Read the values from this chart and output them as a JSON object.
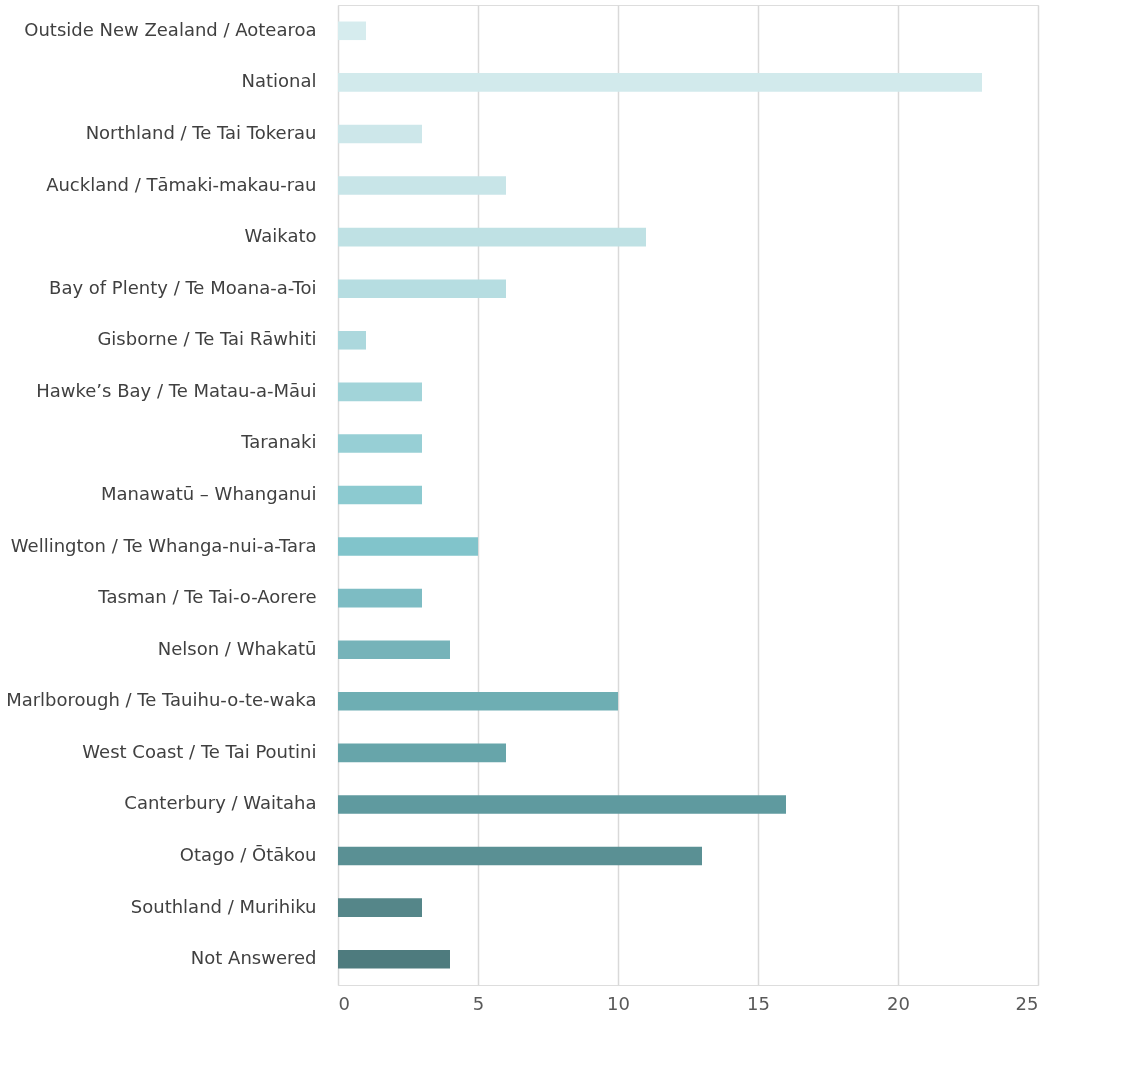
{
  "chart_data": {
    "type": "bar",
    "orientation": "horizontal",
    "categories": [
      "Outside New Zealand / Aotearoa",
      "National",
      "Northland / Te Tai Tokerau",
      "Auckland / Tāmaki-makau-rau",
      "Waikato",
      "Bay of Plenty / Te Moana-a-Toi",
      "Gisborne / Te Tai Rāwhiti",
      "Hawke’s Bay / Te Matau-a-Māui",
      "Taranaki",
      "Manawatū – Whanganui",
      "Wellington / Te Whanga-nui-a-Tara",
      "Tasman / Te Tai-o-Aorere",
      "Nelson / Whakatū",
      "Marlborough / Te Tauihu-o-te-waka",
      "West Coast / Te Tai Poutini",
      "Canterbury / Waitaha",
      "Otago / Ōtākou",
      "Southland / Murihiku",
      "Not Answered"
    ],
    "values": [
      1,
      23,
      3,
      6,
      11,
      6,
      1,
      3,
      3,
      3,
      5,
      3,
      4,
      10,
      6,
      16,
      13,
      3,
      4
    ],
    "colors": [
      "#d6ecee",
      "#d2eaec",
      "#cde7ea",
      "#c8e5e8",
      "#bfe1e4",
      "#b6dde1",
      "#acd8dd",
      "#a2d4d9",
      "#97cfd5",
      "#8ccad0",
      "#81c4cb",
      "#7dbcc3",
      "#76b3b9",
      "#6eaeb3",
      "#67a5aa",
      "#5f9a9f",
      "#5a9094",
      "#558689",
      "#4e7b7e"
    ],
    "xlim": [
      0,
      25
    ],
    "xticks": [
      0,
      5,
      10,
      15,
      20,
      25
    ],
    "grid": "x",
    "legend": false
  }
}
